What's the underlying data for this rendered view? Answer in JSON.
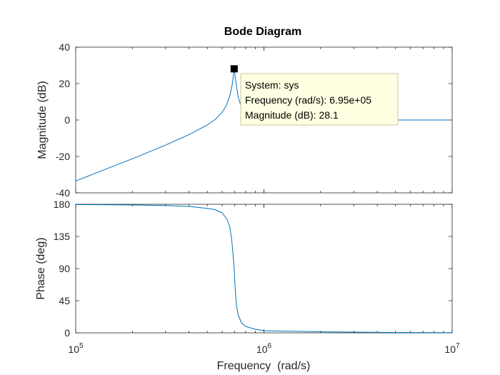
{
  "chart_data": {
    "type": "line",
    "title": "Bode Diagram",
    "xlabel": "Frequency  (rad/s)",
    "xscale": "log",
    "xlim": [
      100000,
      10000000
    ],
    "x_ticks": [
      {
        "value": 100000,
        "base": "10",
        "exp": "5"
      },
      {
        "value": 1000000,
        "base": "10",
        "exp": "6"
      },
      {
        "value": 10000000,
        "base": "10",
        "exp": "7"
      }
    ],
    "grid": false,
    "line_color": "#0072BD",
    "panels": [
      {
        "name": "magnitude",
        "ylabel": "Magnitude (dB)",
        "ylim": [
          -40,
          40
        ],
        "yticks": [
          -40,
          -20,
          0,
          20,
          40
        ],
        "series": [
          {
            "name": "sys",
            "x": [
              100000,
              150000,
              200000,
              300000,
              400000,
              500000,
              550000,
              600000,
              630000,
              660000,
              680000,
              695000,
              710000,
              730000,
              760000,
              800000,
              900000,
              1000000,
              2000000,
              5000000,
              10000000
            ],
            "y": [
              -33.5,
              -26.3,
              -21.3,
              -13.8,
              -8.0,
              -2.7,
              0.2,
              4.3,
              7.8,
              13.5,
              20.0,
              28.1,
              20.5,
              12.5,
              6.8,
              4.0,
              1.9,
              1.1,
              0.2,
              0.0,
              0.0
            ]
          }
        ]
      },
      {
        "name": "phase",
        "ylabel": "Phase (deg)",
        "ylim": [
          0,
          180
        ],
        "yticks": [
          0,
          45,
          90,
          135,
          180
        ],
        "series": [
          {
            "name": "sys",
            "x": [
              100000,
              200000,
              300000,
              400000,
              500000,
              550000,
              600000,
              640000,
              660000,
              675000,
              685000,
              690000,
              695000,
              700000,
              705000,
              715000,
              730000,
              760000,
              800000,
              900000,
              1000000,
              2000000,
              5000000,
              10000000
            ],
            "y": [
              179.6,
              179.0,
              178.2,
              177.0,
              174.3,
              172.5,
              168.0,
              158.0,
              147.0,
              129.0,
              111.0,
              100.0,
              90.0,
              72.0,
              58.0,
              38.0,
              25.0,
              14.0,
              9.0,
              5.0,
              3.0,
              1.5,
              0.5,
              0.3
            ]
          }
        ]
      }
    ],
    "annotation": {
      "marker_x": 695000,
      "marker_y": 28.1,
      "lines": [
        "System: sys",
        "Frequency (rad/s): 6.95e+05",
        "Magnitude (dB): 28.1"
      ]
    }
  }
}
